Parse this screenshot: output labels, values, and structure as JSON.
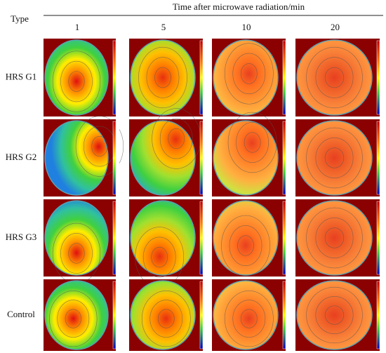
{
  "header": {
    "type_label": "Type",
    "title": "Time after microwave radiation/min"
  },
  "columns": [
    "1",
    "5",
    "10",
    "20"
  ],
  "rows": [
    "HRS G1",
    "HRS G2",
    "HRS G3",
    "Control"
  ]
}
